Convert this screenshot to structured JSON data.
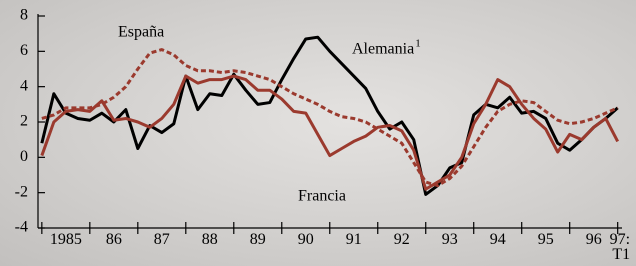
{
  "chart_data": {
    "type": "line",
    "x": [
      1985,
      1985.25,
      1985.5,
      1985.75,
      1986,
      1986.25,
      1986.5,
      1986.75,
      1987,
      1987.25,
      1987.5,
      1987.75,
      1988,
      1988.25,
      1988.5,
      1988.75,
      1989,
      1989.25,
      1989.5,
      1989.75,
      1990,
      1990.25,
      1990.5,
      1990.75,
      1991,
      1991.25,
      1991.5,
      1991.75,
      1992,
      1992.25,
      1992.5,
      1992.75,
      1993,
      1993.25,
      1993.5,
      1993.75,
      1994,
      1994.25,
      1994.5,
      1994.75,
      1995,
      1995.25,
      1995.5,
      1995.75,
      1996,
      1996.25,
      1996.5,
      1996.75,
      1997
    ],
    "series": [
      {
        "name": "Alemania",
        "name_note": "1",
        "color": "#000000",
        "dash": false,
        "values": [
          0.8,
          3.6,
          2.5,
          2.2,
          2.1,
          2.5,
          2.0,
          2.7,
          0.5,
          1.8,
          1.4,
          1.9,
          4.6,
          2.7,
          3.6,
          3.5,
          4.7,
          3.8,
          3.0,
          3.1,
          4.4,
          5.6,
          6.7,
          6.8,
          6.0,
          5.3,
          4.6,
          3.9,
          2.6,
          1.6,
          2.0,
          1.0,
          -2.1,
          -1.6,
          -0.6,
          -0.3,
          2.4,
          3.0,
          2.8,
          3.4,
          2.5,
          2.6,
          2.2,
          0.8,
          0.4,
          1.0,
          1.7,
          2.2,
          2.8
        ]
      },
      {
        "name": "Francia",
        "color": "#9b3a2e",
        "dash": false,
        "values": [
          0.1,
          2.0,
          2.6,
          2.7,
          2.6,
          3.2,
          2.1,
          2.2,
          2.0,
          1.7,
          2.2,
          3.0,
          4.6,
          4.2,
          4.4,
          4.4,
          4.6,
          4.4,
          3.8,
          3.8,
          3.3,
          2.6,
          2.5,
          1.3,
          0.1,
          0.5,
          0.9,
          1.2,
          1.7,
          1.8,
          1.5,
          0.4,
          -1.8,
          -1.4,
          -1.0,
          0.0,
          1.9,
          3.0,
          4.4,
          4.0,
          3.0,
          2.2,
          1.6,
          0.3,
          1.3,
          1.0,
          1.7,
          2.2,
          0.9
        ]
      },
      {
        "name": "España",
        "color": "#9b3a2e",
        "dash": true,
        "values": [
          2.2,
          2.4,
          2.8,
          2.8,
          2.8,
          3.0,
          3.4,
          4.0,
          5.0,
          5.9,
          6.1,
          5.8,
          5.2,
          4.9,
          4.9,
          4.8,
          4.9,
          4.8,
          4.6,
          4.4,
          4.0,
          3.6,
          3.3,
          3.0,
          2.6,
          2.3,
          2.2,
          2.0,
          1.6,
          1.2,
          0.8,
          -0.3,
          -1.4,
          -1.6,
          -1.2,
          -0.5,
          0.6,
          1.7,
          2.6,
          3.0,
          3.2,
          3.1,
          2.6,
          2.1,
          1.9,
          2.0,
          2.2,
          2.5,
          2.8
        ]
      }
    ],
    "xlim": [
      1984.92,
      1997.09
    ],
    "xticks": [
      {
        "value": 1985,
        "label": "1985"
      },
      {
        "value": 1986,
        "label": "86"
      },
      {
        "value": 1987,
        "label": "87"
      },
      {
        "value": 1988,
        "label": "88"
      },
      {
        "value": 1989,
        "label": "89"
      },
      {
        "value": 1990,
        "label": "90"
      },
      {
        "value": 1991,
        "label": "91"
      },
      {
        "value": 1992,
        "label": "92"
      },
      {
        "value": 1993,
        "label": "93"
      },
      {
        "value": 1994,
        "label": "94"
      },
      {
        "value": 1995,
        "label": "95"
      },
      {
        "value": 1996,
        "label": "96"
      },
      {
        "value": 1997,
        "label": "97:\nT1"
      }
    ],
    "ylim": [
      -4,
      8
    ],
    "yticks": [
      -4,
      -2,
      0,
      2,
      4,
      6,
      8
    ]
  }
}
